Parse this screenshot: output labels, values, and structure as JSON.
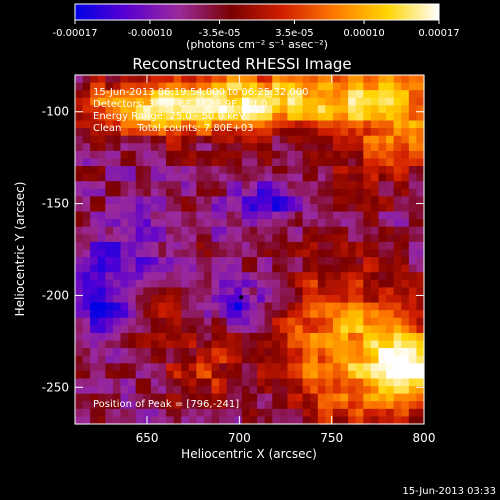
{
  "chart_data": {
    "type": "heatmap",
    "title": "Reconstructed RHESSI Image",
    "xlabel": "Heliocentric X (arcsec)",
    "ylabel": "Heliocentric Y (arcsec)",
    "xlim": [
      611,
      800
    ],
    "ylim": [
      -270,
      -80
    ],
    "x_ticks": [
      650,
      700,
      750,
      800
    ],
    "y_ticks": [
      -100,
      -150,
      -200,
      -250
    ],
    "colorbar": {
      "range": [
        -0.00017,
        0.00017
      ],
      "ticks": [
        "-0.00017",
        "-0.00010",
        "-3.5e-05",
        "3.5e-05",
        "0.00010",
        "0.00017"
      ],
      "unit_label": "(photons cm⁻² s⁻¹ asec⁻²)",
      "colors": [
        "#0000e6",
        "#5a00d0",
        "#9b2a9b",
        "#7a0000",
        "#d21e00",
        "#ff7a00",
        "#ffd400",
        "#ffffff"
      ]
    },
    "annotations": [
      "15-Jun-2013 06:19:54.000 to 06:25:32.000",
      "Detectors: 3F 5F 6F 7F 8F 9F, Att 0",
      "Energy Range: 25.0 - 50.0 keV",
      "Clean     Total counts: 7.80E+03"
    ],
    "peak_label": "Position of Peak = [796,-241]",
    "peak": [
      796,
      -241
    ],
    "footer_time": "15-Jun-2013 03:33",
    "sources": [
      {
        "x": 660,
        "y": -98,
        "sx": 45,
        "sy": 10,
        "amp": 0.00016
      },
      {
        "x": 720,
        "y": -92,
        "sx": 40,
        "sy": 12,
        "amp": 0.00012
      },
      {
        "x": 785,
        "y": -100,
        "sx": 25,
        "sy": 22,
        "amp": 0.00013
      },
      {
        "x": 760,
        "y": -230,
        "sx": 25,
        "sy": 30,
        "amp": 0.00015
      },
      {
        "x": 795,
        "y": -241,
        "sx": 15,
        "sy": 15,
        "amp": 0.00017
      },
      {
        "x": 660,
        "y": -205,
        "sx": 15,
        "sy": 10,
        "amp": 5e-05
      },
      {
        "x": 680,
        "y": -240,
        "sx": 15,
        "sy": 12,
        "amp": 7e-05
      },
      {
        "x": 625,
        "y": -205,
        "sx": 12,
        "sy": 15,
        "amp": -0.0001
      },
      {
        "x": 700,
        "y": -205,
        "sx": 10,
        "sy": 8,
        "amp": -9e-05
      },
      {
        "x": 715,
        "y": -150,
        "sx": 15,
        "sy": 10,
        "amp": -8e-05
      },
      {
        "x": 640,
        "y": -175,
        "sx": 18,
        "sy": 15,
        "amp": -6e-05
      }
    ]
  }
}
